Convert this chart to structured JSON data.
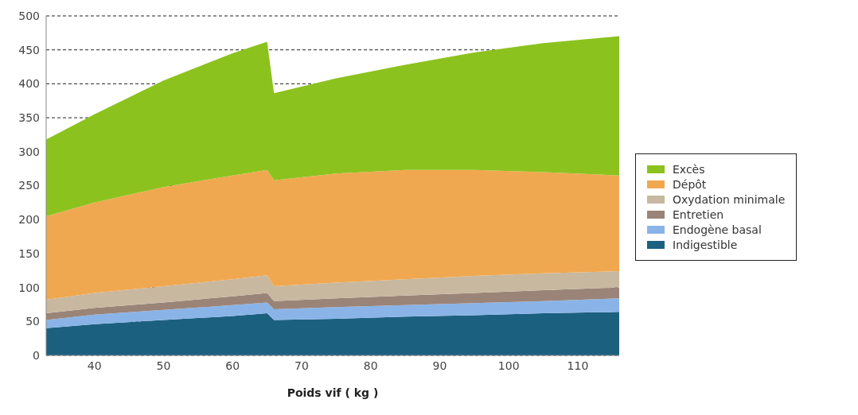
{
  "chart_data": {
    "type": "area",
    "stacked": true,
    "xlabel": "Poids vif ( kg )",
    "x": [
      33,
      40,
      50,
      60,
      65,
      66,
      75,
      85,
      95,
      105,
      116
    ],
    "xlim": [
      33,
      116
    ],
    "xticks": [
      40,
      50,
      60,
      70,
      80,
      90,
      100,
      110
    ],
    "ylim": [
      0,
      500
    ],
    "yticks": [
      0,
      50,
      100,
      150,
      200,
      250,
      300,
      350,
      400,
      450,
      500
    ],
    "grid": "y",
    "legend": "right",
    "series": [
      {
        "name": "Indigestible",
        "color": "#1c6080",
        "values": [
          40,
          46,
          52,
          58,
          62,
          52,
          54,
          57,
          59,
          62,
          64
        ]
      },
      {
        "name": "Endogène basal",
        "color": "#8ab4e8",
        "values": [
          12,
          14,
          15,
          16,
          16,
          16,
          17,
          17,
          18,
          18,
          20
        ]
      },
      {
        "name": "Entretien",
        "color": "#9a8478",
        "values": [
          10,
          10,
          11,
          13,
          14,
          12,
          13,
          14,
          15,
          16,
          16
        ]
      },
      {
        "name": "Oxydation minimale",
        "color": "#c8b8a0",
        "values": [
          20,
          22,
          24,
          25,
          26,
          22,
          23,
          24,
          25,
          25,
          24
        ]
      },
      {
        "name": "Dépôt",
        "color": "#f0a850",
        "values": [
          123,
          133,
          146,
          153,
          155,
          156,
          161,
          161,
          156,
          149,
          141
        ]
      },
      {
        "name": "Excès",
        "color": "#8cc21e",
        "values": [
          113,
          130,
          157,
          180,
          189,
          128,
          140,
          155,
          173,
          190,
          205
        ]
      }
    ]
  }
}
